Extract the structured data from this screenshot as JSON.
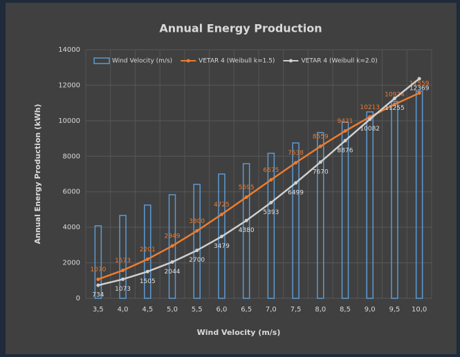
{
  "chart_data": {
    "type": "bar_line",
    "title": "Annual Energy Production",
    "x_label": "Wind Velocity (m/s)",
    "y_label": "Annual Energy Production (kWh)",
    "categories": [
      "3,5",
      "4,0",
      "4,5",
      "5,0",
      "5,5",
      "6,0",
      "6,5",
      "7,0",
      "7,5",
      "8,0",
      "8,5",
      "9,0",
      "9,5",
      "10,0"
    ],
    "series": [
      {
        "name": "Wind Velocity (m/s)",
        "type": "bar",
        "axis": "y2",
        "color": "#5b9bd5",
        "values": [
          3.5,
          4.0,
          4.5,
          5.0,
          5.5,
          6.0,
          6.5,
          7.0,
          7.5,
          8.0,
          8.5,
          9.0,
          9.5,
          10.0
        ]
      },
      {
        "name": "VETAR 4 (Weibull k=1.5)",
        "type": "line",
        "color": "#ed7d31",
        "values": [
          1070,
          1573,
          2201,
          2949,
          3800,
          4725,
          5695,
          6675,
          7638,
          8559,
          9421,
          10213,
          10924,
          11559
        ]
      },
      {
        "name": "VETAR 4 (Weibull k=2.0)",
        "type": "line",
        "color": "#d0d0d0",
        "values": [
          734,
          1073,
          1505,
          2044,
          2700,
          3479,
          4380,
          5393,
          6499,
          7670,
          8876,
          10082,
          11255,
          12369
        ]
      }
    ],
    "ylim": [
      0,
      14000
    ],
    "yticks": [
      0,
      2000,
      4000,
      6000,
      8000,
      10000,
      12000,
      14000
    ],
    "y2lim": [
      0,
      12
    ],
    "grid": true,
    "legend": "top"
  }
}
